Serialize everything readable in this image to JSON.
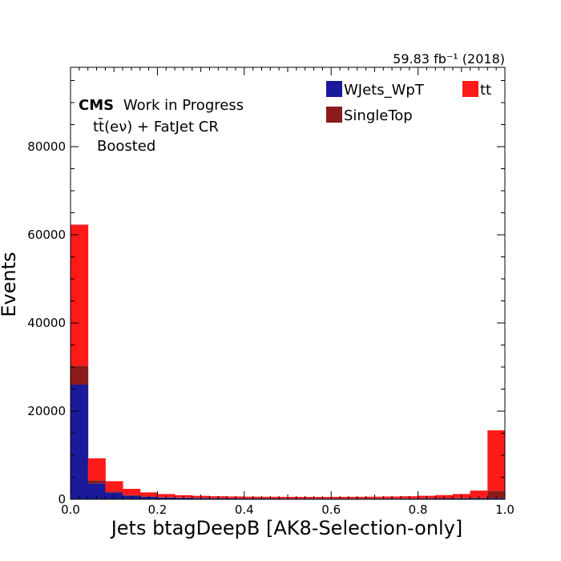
{
  "chart_data": {
    "type": "bar",
    "stacked": true,
    "histogram": true,
    "lumi_label": "59.83 fb⁻¹ (2018)",
    "experiment": "CMS",
    "experiment_suffix": "Work in Progress",
    "region_line1": "tt̄(eν) + FatJet CR",
    "region_line2": "Boosted",
    "xlabel": "Jets btagDeepB [AK8-Selection-only]",
    "ylabel": "Events",
    "xlim": [
      0.0,
      1.0
    ],
    "ylim": [
      0,
      98000
    ],
    "x_ticks": [
      "0.0",
      "0.2",
      "0.4",
      "0.6",
      "0.8",
      "1.0"
    ],
    "y_ticks": [
      "0",
      "20000",
      "40000",
      "60000",
      "80000"
    ],
    "legend_position": "top-right",
    "bin_edges": [
      0.0,
      0.04,
      0.08,
      0.12,
      0.16,
      0.2,
      0.24,
      0.28,
      0.32,
      0.36,
      0.4,
      0.44,
      0.48,
      0.52,
      0.56,
      0.6,
      0.64,
      0.68,
      0.72,
      0.76,
      0.8,
      0.84,
      0.88,
      0.92,
      0.96,
      1.0
    ],
    "series": [
      {
        "name": "WJets_WpT",
        "color": "#1a1a9a",
        "values": [
          26000,
          3600,
          1500,
          800,
          550,
          400,
          320,
          260,
          220,
          200,
          180,
          170,
          160,
          150,
          150,
          150,
          150,
          150,
          160,
          160,
          170,
          180,
          200,
          220,
          250
        ]
      },
      {
        "name": "SingleTop",
        "color": "#8b1a1a",
        "values": [
          4300,
          700,
          300,
          170,
          120,
          90,
          70,
          60,
          55,
          50,
          45,
          45,
          45,
          45,
          45,
          45,
          45,
          50,
          55,
          60,
          70,
          80,
          100,
          150,
          1700
        ]
      },
      {
        "name": "tt",
        "color": "#ff1a1a",
        "values": [
          32000,
          5000,
          2300,
          1400,
          900,
          700,
          550,
          470,
          420,
          390,
          370,
          360,
          350,
          350,
          350,
          360,
          370,
          390,
          420,
          470,
          560,
          700,
          900,
          1600,
          13700
        ]
      }
    ]
  }
}
